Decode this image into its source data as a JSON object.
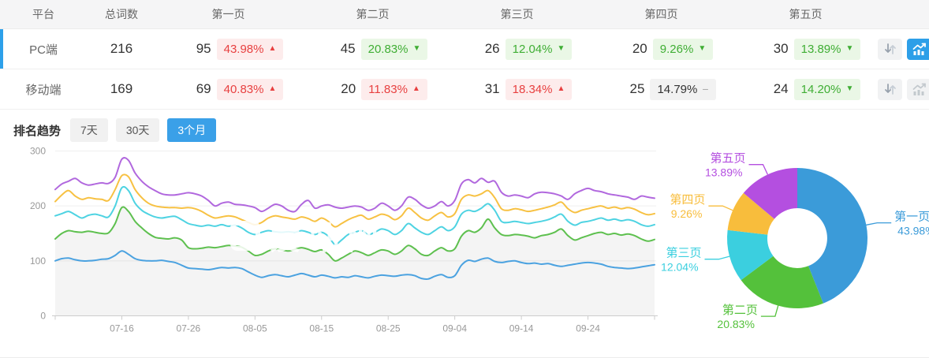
{
  "table": {
    "columns": [
      "平台",
      "总词数",
      "第一页",
      "第二页",
      "第三页",
      "第四页",
      "第五页"
    ],
    "rows": [
      {
        "platform": "PC端",
        "total": "216",
        "selected": true,
        "chart_active": true,
        "pages": [
          {
            "count": "95",
            "pct": "43.98%",
            "dir": "up",
            "tone": "red"
          },
          {
            "count": "45",
            "pct": "20.83%",
            "dir": "down",
            "tone": "green"
          },
          {
            "count": "26",
            "pct": "12.04%",
            "dir": "down",
            "tone": "green"
          },
          {
            "count": "20",
            "pct": "9.26%",
            "dir": "down",
            "tone": "green"
          },
          {
            "count": "30",
            "pct": "13.89%",
            "dir": "down",
            "tone": "green"
          }
        ]
      },
      {
        "platform": "移动端",
        "total": "169",
        "selected": false,
        "chart_active": false,
        "pages": [
          {
            "count": "69",
            "pct": "40.83%",
            "dir": "up",
            "tone": "red"
          },
          {
            "count": "20",
            "pct": "11.83%",
            "dir": "up",
            "tone": "red"
          },
          {
            "count": "31",
            "pct": "18.34%",
            "dir": "up",
            "tone": "red"
          },
          {
            "count": "25",
            "pct": "14.79%",
            "dir": "flat",
            "tone": "gray"
          },
          {
            "count": "24",
            "pct": "14.20%",
            "dir": "down",
            "tone": "green"
          }
        ]
      }
    ],
    "row_action_icons": [
      "sort-arrows-icon",
      "trend-chart-icon"
    ]
  },
  "trend": {
    "title": "排名趋势",
    "tabs": [
      {
        "label": "7天",
        "active": false
      },
      {
        "label": "30天",
        "active": false
      },
      {
        "label": "3个月",
        "active": true
      }
    ]
  },
  "watermark": {
    "text": "爱站网"
  },
  "colors": {
    "accent_blue": "#2d9fe8",
    "selected_row_bar": "#2da0ea",
    "badge_red_text": "#e84040",
    "badge_red_bg": "#fdecec",
    "badge_green_text": "#3fae34",
    "badge_green_bg": "#eaf7e6",
    "badge_gray_text": "#333333",
    "badge_gray_bg": "#f2f2f2",
    "axis_text": "#999999",
    "axis_line": "#cccccc",
    "grid_line": "#efefef",
    "area_fill": "rgba(0,0,0,0.043)"
  },
  "chart_data": [
    {
      "type": "line",
      "title": "排名趋势（3个月）",
      "ylim": [
        0,
        300
      ],
      "yticks": [
        0,
        100,
        200,
        300
      ],
      "x_tick_labels": [
        "07-16",
        "07-26",
        "08-05",
        "08-15",
        "08-25",
        "09-04",
        "09-14",
        "09-24"
      ],
      "x_tick_indices": [
        10,
        20,
        30,
        40,
        50,
        60,
        70,
        80
      ],
      "n_points": 91,
      "grid": true,
      "series": [
        {
          "name": "第一页",
          "color": "#4ba2e0",
          "area": false,
          "values": [
            100,
            104,
            105,
            102,
            100,
            100,
            101,
            103,
            104,
            110,
            118,
            112,
            104,
            101,
            100,
            100,
            101,
            99,
            97,
            92,
            87,
            86,
            85,
            84,
            86,
            88,
            87,
            88,
            86,
            80,
            74,
            70,
            73,
            75,
            73,
            71,
            74,
            77,
            74,
            71,
            74,
            72,
            69,
            71,
            70,
            73,
            71,
            69,
            72,
            74,
            73,
            72,
            74,
            75,
            73,
            68,
            67,
            72,
            75,
            70,
            73,
            92,
            101,
            99,
            103,
            105,
            99,
            97,
            99,
            100,
            97,
            95,
            96,
            94,
            95,
            92,
            90,
            92,
            94,
            96,
            97,
            96,
            94,
            90,
            88,
            87,
            86,
            87,
            89,
            91,
            93
          ]
        },
        {
          "name": "第二页",
          "color": "#5ec04f",
          "area": true,
          "values": [
            140,
            150,
            155,
            153,
            152,
            154,
            152,
            150,
            151,
            168,
            197,
            190,
            172,
            160,
            150,
            143,
            141,
            140,
            142,
            138,
            124,
            122,
            123,
            125,
            124,
            126,
            128,
            127,
            125,
            118,
            110,
            112,
            118,
            122,
            120,
            118,
            121,
            124,
            121,
            117,
            120,
            112,
            100,
            105,
            112,
            118,
            115,
            110,
            115,
            120,
            118,
            112,
            118,
            128,
            122,
            112,
            110,
            118,
            124,
            118,
            122,
            145,
            155,
            152,
            160,
            176,
            160,
            148,
            146,
            148,
            147,
            145,
            142,
            146,
            148,
            152,
            158,
            146,
            138,
            142,
            146,
            150,
            152,
            148,
            150,
            147,
            149,
            146,
            140,
            136,
            139
          ]
        },
        {
          "name": "第三页",
          "color": "#4ed3e2",
          "area": false,
          "values": [
            182,
            186,
            190,
            184,
            178,
            183,
            185,
            182,
            180,
            200,
            233,
            228,
            205,
            192,
            185,
            180,
            178,
            180,
            181,
            175,
            168,
            165,
            163,
            165,
            163,
            166,
            163,
            165,
            160,
            152,
            148,
            152,
            155,
            153,
            152,
            153,
            152,
            155,
            152,
            148,
            152,
            145,
            130,
            138,
            148,
            152,
            155,
            148,
            152,
            158,
            155,
            148,
            155,
            168,
            160,
            152,
            148,
            155,
            162,
            155,
            162,
            185,
            192,
            190,
            196,
            204,
            192,
            172,
            170,
            172,
            170,
            168,
            170,
            172,
            175,
            180,
            185,
            172,
            165,
            170,
            172,
            175,
            178,
            174,
            176,
            173,
            175,
            172,
            166,
            163,
            166
          ]
        },
        {
          "name": "第四页",
          "color": "#f7c142",
          "area": false,
          "values": [
            208,
            220,
            228,
            218,
            212,
            215,
            213,
            212,
            210,
            230,
            255,
            253,
            230,
            215,
            205,
            200,
            198,
            197,
            197,
            196,
            197,
            195,
            190,
            183,
            178,
            180,
            182,
            180,
            175,
            170,
            166,
            170,
            178,
            182,
            180,
            178,
            176,
            180,
            177,
            172,
            178,
            172,
            162,
            168,
            175,
            180,
            183,
            176,
            180,
            185,
            182,
            175,
            182,
            196,
            188,
            178,
            174,
            182,
            188,
            180,
            186,
            212,
            220,
            218,
            222,
            228,
            215,
            195,
            192,
            195,
            193,
            190,
            192,
            195,
            198,
            202,
            207,
            195,
            188,
            192,
            195,
            198,
            200,
            196,
            198,
            195,
            197,
            194,
            188,
            184,
            186
          ]
        },
        {
          "name": "第五页",
          "color": "#b168de",
          "area": false,
          "values": [
            230,
            240,
            245,
            250,
            242,
            238,
            240,
            242,
            241,
            252,
            285,
            283,
            260,
            245,
            235,
            228,
            222,
            220,
            220,
            222,
            224,
            222,
            218,
            210,
            200,
            205,
            207,
            203,
            202,
            200,
            197,
            190,
            196,
            203,
            200,
            192,
            190,
            203,
            210,
            196,
            200,
            202,
            198,
            196,
            198,
            200,
            198,
            192,
            196,
            205,
            200,
            192,
            200,
            216,
            212,
            202,
            196,
            200,
            208,
            200,
            210,
            240,
            248,
            242,
            250,
            243,
            245,
            225,
            218,
            220,
            218,
            215,
            222,
            225,
            224,
            222,
            218,
            212,
            222,
            228,
            232,
            228,
            226,
            222,
            220,
            218,
            216,
            212,
            218,
            216,
            214
          ]
        }
      ]
    },
    {
      "type": "pie",
      "donut": true,
      "slices": [
        {
          "label": "第一页",
          "value": 43.98,
          "display": "43.98%",
          "color": "#3b9bd9"
        },
        {
          "label": "第二页",
          "value": 20.83,
          "display": "20.83%",
          "color": "#54c13b"
        },
        {
          "label": "第三页",
          "value": 12.04,
          "display": "12.04%",
          "color": "#3bcfdf"
        },
        {
          "label": "第四页",
          "value": 9.26,
          "display": "9.26%",
          "color": "#f8bd3c"
        },
        {
          "label": "第五页",
          "value": 13.89,
          "display": "13.89%",
          "color": "#b44fe0"
        }
      ]
    }
  ]
}
